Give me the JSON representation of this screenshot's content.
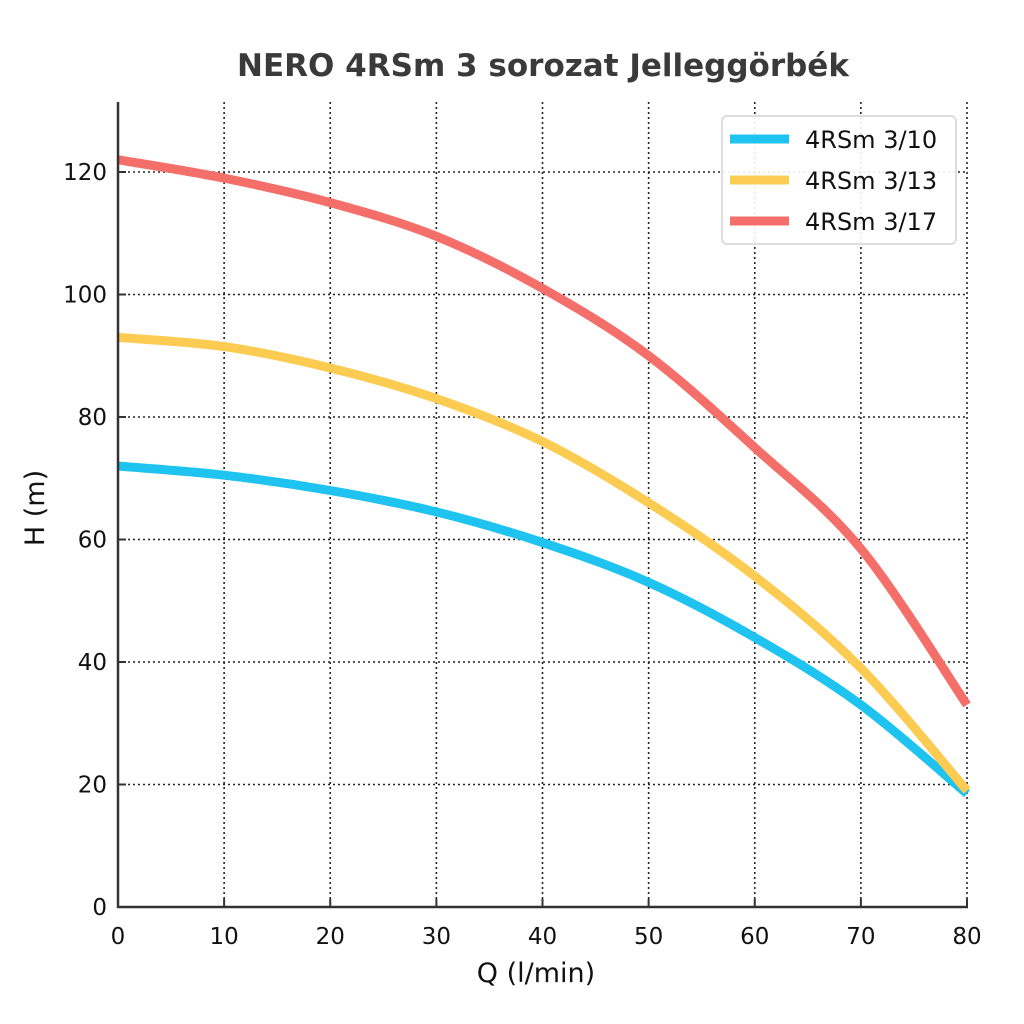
{
  "chart_data": {
    "type": "line",
    "title": "NERO 4RSm 3 sorozat Jelleggörbék",
    "xlabel": "Q (l/min)",
    "ylabel": "H (m)",
    "xlim": [
      0,
      80
    ],
    "ylim": [
      0,
      130
    ],
    "xticks": [
      0,
      10,
      20,
      30,
      40,
      50,
      60,
      70,
      80
    ],
    "yticks": [
      0,
      20,
      40,
      60,
      80,
      100,
      120
    ],
    "grid": true,
    "legend_position": "top-right",
    "x": [
      0,
      10,
      20,
      30,
      40,
      50,
      60,
      70,
      80
    ],
    "series": [
      {
        "name": "4RSm 3/10",
        "color": "#1ec3ef",
        "values": [
          72,
          70.5,
          68,
          64.5,
          59.5,
          53,
          44,
          33,
          18.5
        ]
      },
      {
        "name": "4RSm 3/13",
        "color": "#fccb52",
        "values": [
          93,
          91.5,
          88,
          83,
          76,
          66,
          54,
          39,
          19
        ]
      },
      {
        "name": "4RSm 3/17",
        "color": "#f46f6a",
        "values": [
          122,
          119,
          115,
          109.5,
          101,
          90,
          75,
          58.5,
          33
        ]
      }
    ]
  }
}
